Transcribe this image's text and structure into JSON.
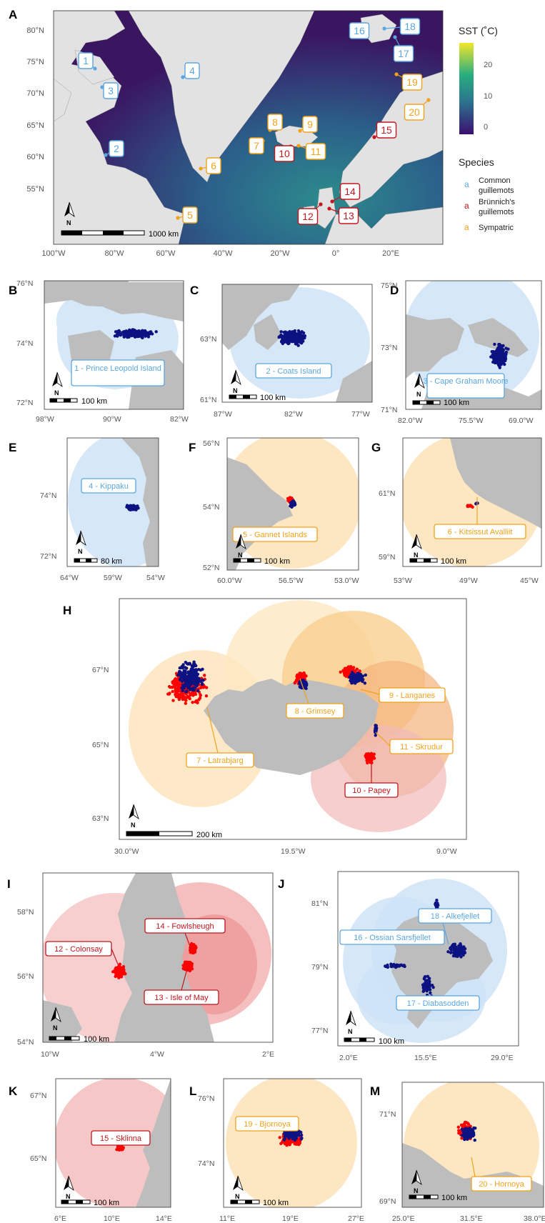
{
  "panels": {
    "A": {
      "label": "A",
      "lat_ticks": [
        "80°N",
        "75°N",
        "70°N",
        "65°N",
        "60°N",
        "55°N"
      ],
      "lon_ticks": [
        "100°W",
        "80°W",
        "60°W",
        "40°W",
        "20°W",
        "0°",
        "20°E"
      ],
      "scalebar": "1000 km",
      "sites": [
        {
          "n": "1",
          "sp": "blue"
        },
        {
          "n": "2",
          "sp": "blue"
        },
        {
          "n": "3",
          "sp": "blue"
        },
        {
          "n": "4",
          "sp": "blue"
        },
        {
          "n": "5",
          "sp": "orange"
        },
        {
          "n": "6",
          "sp": "orange"
        },
        {
          "n": "7",
          "sp": "orange"
        },
        {
          "n": "8",
          "sp": "orange"
        },
        {
          "n": "9",
          "sp": "orange"
        },
        {
          "n": "10",
          "sp": "red"
        },
        {
          "n": "11",
          "sp": "orange"
        },
        {
          "n": "12",
          "sp": "red"
        },
        {
          "n": "13",
          "sp": "red"
        },
        {
          "n": "14",
          "sp": "red"
        },
        {
          "n": "15",
          "sp": "red"
        },
        {
          "n": "16",
          "sp": "blue"
        },
        {
          "n": "17",
          "sp": "blue"
        },
        {
          "n": "18",
          "sp": "blue"
        },
        {
          "n": "19",
          "sp": "orange"
        },
        {
          "n": "20",
          "sp": "orange"
        }
      ]
    },
    "legend": {
      "sst_title": "SST (˚C)",
      "sst_ticks": [
        "20",
        "10",
        "0"
      ],
      "species_title": "Species",
      "items": [
        {
          "glyph": "a",
          "label": "Common guillemots",
          "color": "#5aa6e0"
        },
        {
          "glyph": "a",
          "label": "Brünnich's guillemots",
          "color": "#c0161d"
        },
        {
          "glyph": "a",
          "label": "Sympatric",
          "color": "#f0a21b"
        }
      ]
    },
    "B": {
      "label": "B",
      "lat": [
        "76°N",
        "74°N",
        "72°N"
      ],
      "lon": [
        "98°W",
        "90°W",
        "82°W"
      ],
      "site": "1 - Prince Leopold Island",
      "scale": "100 km"
    },
    "C": {
      "label": "C",
      "lat": [
        "63°N",
        "61°N"
      ],
      "lon": [
        "87°W",
        "82°W",
        "77°W"
      ],
      "site": "2 - Coats Island",
      "scale": "100 km"
    },
    "D": {
      "label": "D",
      "lat": [
        "75°N",
        "73°N",
        "71°N"
      ],
      "lon": [
        "82.0°W",
        "75.5°W",
        "69.0°W"
      ],
      "site": "3 - Cape Graham Moore",
      "scale": "100 km"
    },
    "E": {
      "label": "E",
      "lat": [
        "74°N",
        "72°N"
      ],
      "lon": [
        "64°W",
        "59°W",
        "54°W"
      ],
      "site": "4 - Kippaku",
      "scale": "80 km"
    },
    "F": {
      "label": "F",
      "lat": [
        "56°N",
        "54°N",
        "52°N"
      ],
      "lon": [
        "60.0°W",
        "56.5°W",
        "53.0°W"
      ],
      "site": "5 - Gannet Islands",
      "scale": "100 km"
    },
    "G": {
      "label": "G",
      "lat": [
        "61°N",
        "59°N"
      ],
      "lon": [
        "53°W",
        "49°W",
        "45°W"
      ],
      "site": "6 - Kitsissut Avalliit",
      "scale": "100 km"
    },
    "H": {
      "label": "H",
      "lat": [
        "67°N",
        "65°N",
        "63°N"
      ],
      "lon": [
        "30.0°W",
        "19.5°W",
        "9.0°W"
      ],
      "sites": [
        "7 - Latrabjarg",
        "8 - Grimsey",
        "9 - Langanes",
        "10 - Papey",
        "11 - Skrudur"
      ],
      "scale": "200 km"
    },
    "I": {
      "label": "I",
      "lat": [
        "58°N",
        "56°N",
        "54°N"
      ],
      "lon": [
        "10°W",
        "4°W",
        "2°E"
      ],
      "sites": [
        "12 - Colonsay",
        "13 - Isle of May",
        "14 - Fowlsheugh"
      ],
      "scale": "100 km"
    },
    "J": {
      "label": "J",
      "lat": [
        "81°N",
        "79°N",
        "77°N"
      ],
      "lon": [
        "2.0°E",
        "15.5°E",
        "29.0°E"
      ],
      "sites": [
        "16 - Ossian Sarsfjellet",
        "17 - Diabasodden",
        "18 - Alkefjellet"
      ],
      "scale": "100 km"
    },
    "K": {
      "label": "K",
      "lat": [
        "67°N",
        "65°N"
      ],
      "lon": [
        "6°E",
        "10°E",
        "14°E"
      ],
      "site": "15 - Sklinna",
      "scale": "100 km"
    },
    "L": {
      "label": "L",
      "lat": [
        "76°N",
        "74°N"
      ],
      "lon": [
        "11°E",
        "19°E",
        "27°E"
      ],
      "site": "19 - Bjornoya",
      "scale": "100 km"
    },
    "M": {
      "label": "M",
      "lat": [
        "71°N",
        "69°N"
      ],
      "lon": [
        "25.0°E",
        "31.5°E",
        "38.0°E"
      ],
      "site": "20 - Hornoya",
      "scale": "100 km"
    }
  }
}
